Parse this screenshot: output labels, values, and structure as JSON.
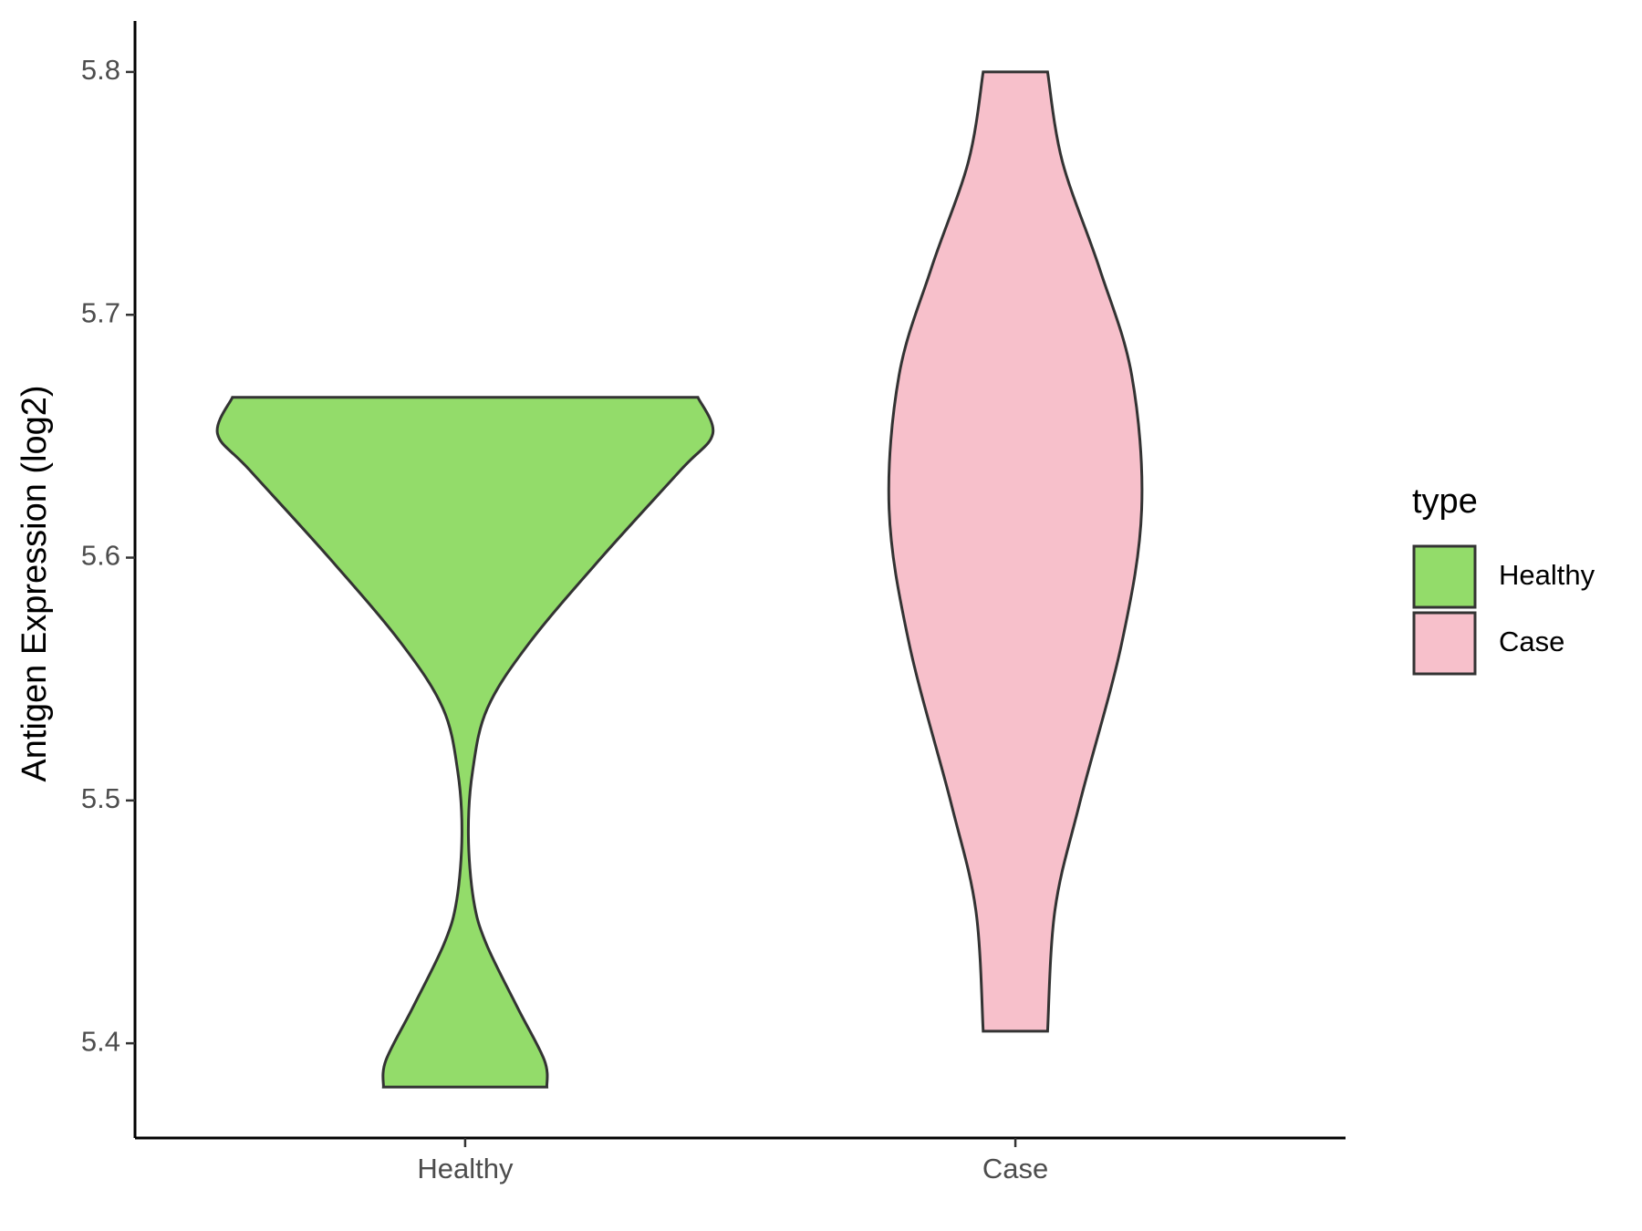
{
  "chart_data": {
    "type": "violin",
    "y_label": "Antigen Expression (log2)",
    "categories": [
      "Healthy",
      "Case"
    ],
    "series": [
      {
        "name": "Healthy",
        "color": "#93dc6a",
        "y": [
          5.666,
          5.651,
          5.636,
          5.6,
          5.565,
          5.538,
          5.512,
          5.486,
          5.459,
          5.441,
          5.415,
          5.393,
          5.382
        ],
        "width": [
          0.94,
          1,
          0.87,
          0.55,
          0.26,
          0.09,
          0.03,
          0.013,
          0.034,
          0.085,
          0.21,
          0.32,
          0.33
        ]
      },
      {
        "name": "Case",
        "color": "#f7c0cb",
        "y": [
          5.8,
          5.763,
          5.719,
          5.675,
          5.62,
          5.565,
          5.499,
          5.455,
          5.405
        ],
        "width": [
          0.13,
          0.19,
          0.34,
          0.47,
          0.51,
          0.43,
          0.26,
          0.16,
          0.13
        ]
      }
    ],
    "ylim": [
      5.361,
      5.821
    ],
    "yticks": [
      5.4,
      5.5,
      5.6,
      5.7,
      5.8
    ],
    "legend_title": "type",
    "legend_position": "right"
  }
}
